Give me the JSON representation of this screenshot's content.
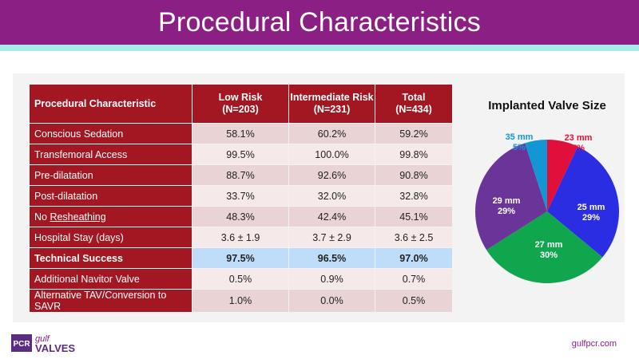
{
  "slide": {
    "title": "Procedural Characteristics",
    "url": "gulfpcr.com"
  },
  "logo": {
    "pcr": "PCR",
    "gulf": "gulf",
    "valves": "VALVES"
  },
  "table": {
    "headers": [
      {
        "line1": "Procedural Characteristic",
        "line2": ""
      },
      {
        "line1": "Low Risk",
        "line2": "(N=203)"
      },
      {
        "line1": "Intermediate Risk",
        "line2": "(N=231)"
      },
      {
        "line1": "Total",
        "line2": "(N=434)"
      }
    ],
    "rows": [
      {
        "label": "Conscious Sedation",
        "low": "58.1%",
        "mid": "60.2%",
        "total": "59.2%"
      },
      {
        "label": "Transfemoral Access",
        "low": "99.5%",
        "mid": "100.0%",
        "total": "99.8%"
      },
      {
        "label": "Pre-dilatation",
        "low": "88.7%",
        "mid": "92.6%",
        "total": "90.8%"
      },
      {
        "label": "Post-dilatation",
        "low": "33.7%",
        "mid": "32.0%",
        "total": "32.8%"
      },
      {
        "label_prefix": "No ",
        "label_underlined": "Resheathing",
        "low": "48.3%",
        "mid": "42.4%",
        "total": "45.1%"
      },
      {
        "label": "Hospital Stay (days)",
        "low": "3.6 ± 1.9",
        "mid": "3.7 ± 2.9",
        "total": "3.6 ± 2.5"
      },
      {
        "label": "Technical Success",
        "low": "97.5%",
        "mid": "96.5%",
        "total": "97.0%"
      },
      {
        "label": "Additional Navitor Valve",
        "low": "0.5%",
        "mid": "0.9%",
        "total": "0.7%"
      },
      {
        "label": "Alternative TAV/Conversion to SAVR",
        "low": "1.0%",
        "mid": "0.0%",
        "total": "0.5%"
      }
    ]
  },
  "colors": {
    "accent": "#8b1f83",
    "table_red": "#a21722",
    "highlight": "#bfddf8"
  },
  "chart_data": {
    "type": "pie",
    "title": "Implanted Valve Size",
    "slices": [
      {
        "label": "23 mm",
        "value": 7,
        "pct": "7%",
        "color": "#e0103a"
      },
      {
        "label": "25 mm",
        "value": 29,
        "pct": "29%",
        "color": "#2b2de3"
      },
      {
        "label": "27 mm",
        "value": 30,
        "pct": "30%",
        "color": "#0fa64e"
      },
      {
        "label": "29 mm",
        "value": 29,
        "pct": "29%",
        "color": "#6a3499"
      },
      {
        "label": "35 mm",
        "value": 5,
        "pct": "5%",
        "color": "#1296d4"
      }
    ]
  }
}
